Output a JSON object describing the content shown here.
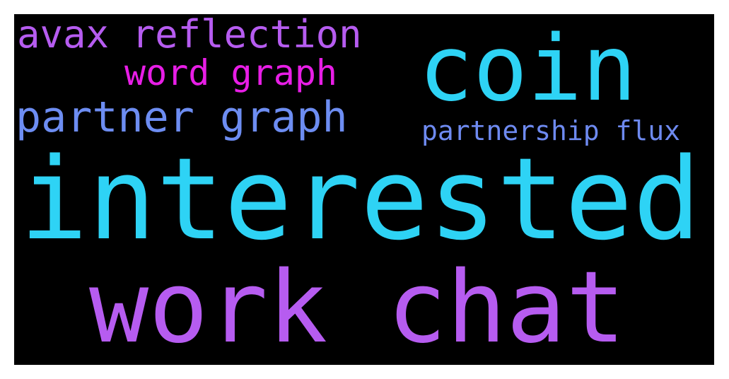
{
  "background_color": "#000000",
  "frame_color": "#ffffff",
  "words": [
    {
      "text": "avax reflection",
      "color": "#b65cf0"
    },
    {
      "text": "coin",
      "color": "#2ed3f5"
    },
    {
      "text": "word graph",
      "color": "#e81ee6"
    },
    {
      "text": "partner graph",
      "color": "#6d8df2"
    },
    {
      "text": "partnership flux",
      "color": "#6e8af0"
    },
    {
      "text": "interested",
      "color": "#2ed3f5"
    },
    {
      "text": "work chat",
      "color": "#b65cf0"
    }
  ]
}
